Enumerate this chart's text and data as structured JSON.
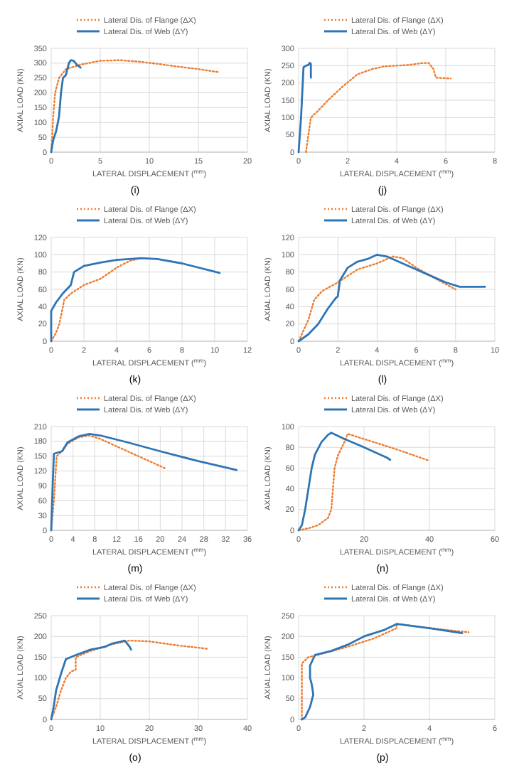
{
  "chart_data": [
    {
      "type": "line",
      "title": "(i)",
      "xlabel": "LATERAL DISPLACEMENT ($^{mm}$)",
      "ylabel": "AXIAL LOAD (KN)",
      "xlim": [
        0,
        20
      ],
      "xticks": [
        0,
        5,
        10,
        15,
        20
      ],
      "ylim": [
        0,
        350
      ],
      "yticks": [
        0,
        50,
        100,
        150,
        200,
        250,
        300,
        350
      ],
      "grid": true,
      "legend": "top",
      "series": [
        {
          "name": "Lateral Dis. of Flange (ΔX)",
          "color": "#ed7d31",
          "line_style": "dotted",
          "x": [
            0,
            0.1,
            0.2,
            0.4,
            0.8,
            1.5,
            3,
            5,
            7,
            9,
            11,
            13,
            15,
            17
          ],
          "values": [
            0,
            50,
            120,
            200,
            250,
            280,
            295,
            308,
            310,
            305,
            297,
            288,
            280,
            270
          ]
        },
        {
          "name": "Lateral Dis. of Web (ΔY)",
          "color": "#2e75b6",
          "line_style": "solid",
          "x": [
            0,
            0.2,
            0.5,
            0.8,
            1,
            1.2,
            1.5,
            1.8,
            2,
            2.3,
            2.6,
            3
          ],
          "values": [
            0,
            40,
            70,
            120,
            200,
            250,
            260,
            300,
            310,
            308,
            295,
            285
          ]
        }
      ]
    },
    {
      "type": "line",
      "title": "(j)",
      "xlabel": "LATERAL DISPLACEMENT ($^{mm}$)",
      "ylabel": "AXIAL LOAD (KN)",
      "xlim": [
        0,
        8
      ],
      "xticks": [
        0,
        2,
        4,
        6,
        8
      ],
      "ylim": [
        0,
        300
      ],
      "yticks": [
        0,
        50,
        100,
        150,
        200,
        250,
        300
      ],
      "grid": true,
      "legend": "top",
      "series": [
        {
          "name": "Lateral Dis. of Flange (ΔX)",
          "color": "#ed7d31",
          "line_style": "dotted",
          "x": [
            0.3,
            0.4,
            0.5,
            0.8,
            1.2,
            1.8,
            2.4,
            3,
            3.5,
            4.5,
            5,
            5.3,
            5.5,
            5.6,
            6.2
          ],
          "values": [
            0,
            50,
            100,
            120,
            150,
            190,
            225,
            240,
            248,
            252,
            257,
            258,
            240,
            215,
            213
          ]
        },
        {
          "name": "Lateral Dis. of Web (ΔY)",
          "color": "#2e75b6",
          "line_style": "solid",
          "x": [
            0,
            0.1,
            0.2,
            0.3,
            0.4,
            0.45,
            0.5,
            0.5
          ],
          "values": [
            0,
            100,
            245,
            250,
            252,
            258,
            255,
            215
          ]
        }
      ]
    },
    {
      "type": "line",
      "title": "(k)",
      "xlabel": "LATERAL DISPLACEMENT ($^{mm}$)",
      "ylabel": "AXIAL LOAD (KN)",
      "xlim": [
        0,
        12
      ],
      "xticks": [
        0,
        2,
        4,
        6,
        8,
        10,
        12
      ],
      "ylim": [
        0,
        120
      ],
      "yticks": [
        0,
        20,
        40,
        60,
        80,
        100,
        120
      ],
      "grid": true,
      "legend": "top",
      "series": [
        {
          "name": "Lateral Dis. of Flange (ΔX)",
          "color": "#ed7d31",
          "line_style": "dotted",
          "x": [
            0,
            0.3,
            0.5,
            0.8,
            1.2,
            2,
            3,
            4,
            4.8,
            5.5
          ],
          "values": [
            0,
            10,
            20,
            48,
            55,
            65,
            72,
            85,
            93,
            96
          ]
        },
        {
          "name": "Lateral Dis. of Web (ΔY)",
          "color": "#2e75b6",
          "line_style": "solid",
          "x": [
            0,
            0,
            0.3,
            0.7,
            1.2,
            1.4,
            2,
            3,
            4,
            5.5,
            6.5,
            8,
            10.3
          ],
          "values": [
            0,
            35,
            45,
            55,
            65,
            80,
            87,
            91,
            94,
            96,
            95,
            90,
            79
          ]
        }
      ]
    },
    {
      "type": "line",
      "title": "(l)",
      "xlabel": "LATERAL DISPLACEMENT ($^{mm}$)",
      "ylabel": "AXIAL LOAD (KN)",
      "xlim": [
        0,
        10
      ],
      "xticks": [
        0,
        2,
        4,
        6,
        8,
        10
      ],
      "ylim": [
        0,
        120
      ],
      "yticks": [
        0,
        20,
        40,
        60,
        80,
        100,
        120
      ],
      "grid": true,
      "legend": "top",
      "series": [
        {
          "name": "Lateral Dis. of Flange (ΔX)",
          "color": "#ed7d31",
          "line_style": "dotted",
          "x": [
            0,
            0.2,
            0.5,
            0.8,
            1.2,
            2,
            3,
            4,
            4.5,
            4.8,
            5.3,
            6,
            7,
            8
          ],
          "values": [
            0,
            10,
            25,
            48,
            58,
            68,
            83,
            90,
            95,
            98,
            96,
            85,
            72,
            60
          ]
        },
        {
          "name": "Lateral Dis. of Web (ΔY)",
          "color": "#2e75b6",
          "line_style": "solid",
          "x": [
            0,
            0.5,
            1,
            1.5,
            1.9,
            2,
            2.1,
            2.5,
            3,
            3.5,
            4,
            4.5,
            5.5,
            6.5,
            7.5,
            8.2,
            9.5
          ],
          "values": [
            0,
            8,
            20,
            38,
            50,
            52,
            70,
            85,
            92,
            95,
            100,
            98,
            88,
            78,
            68,
            63,
            63
          ]
        }
      ]
    },
    {
      "type": "line",
      "title": "(m)",
      "xlabel": "LATERAL DISPLACEMENT ($^{mm}$)",
      "ylabel": "AXIAL LOAD (KN)",
      "xlim": [
        0,
        36
      ],
      "xticks": [
        0,
        4,
        8,
        12,
        16,
        20,
        24,
        28,
        32,
        36
      ],
      "ylim": [
        0,
        210
      ],
      "yticks": [
        0,
        30,
        60,
        90,
        120,
        150,
        180,
        210
      ],
      "grid": true,
      "legend": "top",
      "series": [
        {
          "name": "Lateral Dis. of Flange (ΔX)",
          "color": "#ed7d31",
          "line_style": "dotted",
          "x": [
            0,
            0.5,
            1,
            2,
            3,
            5,
            7,
            9,
            13,
            17,
            21
          ],
          "values": [
            0,
            60,
            150,
            160,
            175,
            188,
            192,
            185,
            165,
            145,
            125
          ]
        },
        {
          "name": "Lateral Dis. of Web (ΔY)",
          "color": "#2e75b6",
          "line_style": "solid",
          "x": [
            0,
            0.3,
            0.5,
            2,
            3,
            5,
            7,
            9,
            14,
            20,
            27,
            34
          ],
          "values": [
            0,
            100,
            155,
            160,
            178,
            190,
            195,
            192,
            178,
            160,
            140,
            122
          ]
        }
      ]
    },
    {
      "type": "line",
      "title": "(n)",
      "xlabel": "LATERAL DISPLACEMENT ($^{mm}$)",
      "ylabel": "AXIAL LOAD (KN)",
      "xlim": [
        0,
        60
      ],
      "xticks": [
        0,
        20,
        40,
        60
      ],
      "ylim": [
        0,
        100
      ],
      "yticks": [
        0,
        20,
        40,
        60,
        80,
        100
      ],
      "grid": true,
      "legend": "top",
      "series": [
        {
          "name": "Lateral Dis. of Flange (ΔX)",
          "color": "#ed7d31",
          "line_style": "dotted",
          "x": [
            0,
            3,
            6,
            9,
            10,
            10.5,
            11,
            12,
            14,
            15,
            22,
            30,
            40
          ],
          "values": [
            0,
            2,
            5,
            12,
            20,
            40,
            60,
            72,
            85,
            93,
            86,
            78,
            67
          ]
        },
        {
          "name": "Lateral Dis. of Web (ΔY)",
          "color": "#2e75b6",
          "line_style": "solid",
          "x": [
            0,
            1,
            2,
            3,
            4,
            5,
            7,
            9,
            10,
            14,
            20,
            27,
            28
          ],
          "values": [
            0,
            5,
            20,
            40,
            60,
            73,
            85,
            92,
            94,
            88,
            80,
            70,
            68
          ]
        }
      ]
    },
    {
      "type": "line",
      "title": "(o)",
      "xlabel": "LATERAL DISPLACEMENT ($^{mm}$)",
      "ylabel": "AXIAL LOAD (KN)",
      "xlim": [
        0,
        40
      ],
      "xticks": [
        0,
        10,
        20,
        30,
        40
      ],
      "ylim": [
        0,
        250
      ],
      "yticks": [
        0,
        50,
        100,
        150,
        200,
        250
      ],
      "grid": true,
      "legend": "top",
      "series": [
        {
          "name": "Lateral Dis. of Flange (ΔX)",
          "color": "#ed7d31",
          "line_style": "dotted",
          "x": [
            0,
            1,
            2,
            3,
            4,
            5,
            5,
            8,
            12,
            16,
            20,
            26,
            32
          ],
          "values": [
            0,
            30,
            70,
            100,
            115,
            120,
            150,
            165,
            180,
            190,
            188,
            178,
            170
          ]
        },
        {
          "name": "Lateral Dis. of Web (ΔY)",
          "color": "#2e75b6",
          "line_style": "solid",
          "x": [
            0,
            0.5,
            1,
            2,
            3,
            5,
            8,
            11,
            12.5,
            14,
            15,
            16,
            16.3
          ],
          "values": [
            0,
            30,
            70,
            110,
            145,
            155,
            168,
            175,
            183,
            187,
            190,
            175,
            168
          ]
        }
      ]
    },
    {
      "type": "line",
      "title": "(p)",
      "xlabel": "LATERAL DISPLACEMENT ($^{mm}$)",
      "ylabel": "AXIAL LOAD (KN)",
      "xlim": [
        0,
        6
      ],
      "xticks": [
        0,
        2,
        4,
        6
      ],
      "ylim": [
        0,
        250
      ],
      "yticks": [
        0,
        50,
        100,
        150,
        200,
        250
      ],
      "grid": true,
      "legend": "top",
      "series": [
        {
          "name": "Lateral Dis. of Flange (ΔX)",
          "color": "#ed7d31",
          "line_style": "dotted",
          "x": [
            0.1,
            0.1,
            0.1,
            0.1,
            0.3,
            0.8,
            1.5,
            2.3,
            3,
            3,
            4,
            5.2
          ],
          "values": [
            0,
            50,
            100,
            135,
            150,
            160,
            175,
            195,
            220,
            230,
            220,
            210
          ]
        },
        {
          "name": "Lateral Dis. of Web (ΔY)",
          "color": "#2e75b6",
          "line_style": "solid",
          "x": [
            0.1,
            0.2,
            0.35,
            0.45,
            0.4,
            0.35,
            0.35,
            0.5,
            1,
            1.5,
            2,
            2.6,
            3,
            4,
            5
          ],
          "values": [
            0,
            5,
            30,
            60,
            85,
            100,
            130,
            155,
            165,
            180,
            200,
            215,
            230,
            220,
            208
          ]
        }
      ]
    }
  ]
}
